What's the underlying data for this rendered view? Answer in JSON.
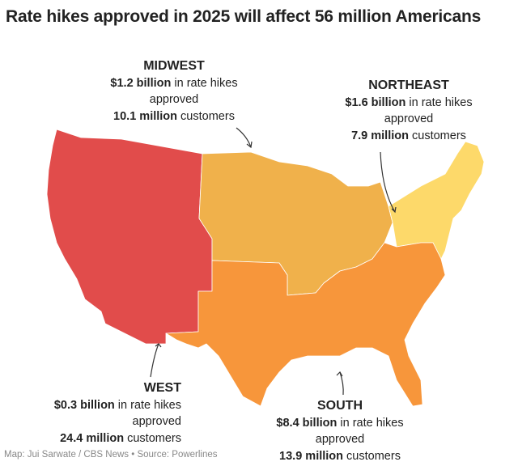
{
  "title": "Rate hikes approved in 2025 will affect 56 million Americans",
  "source": "Map: Jui Sarwate / CBS News • Source: Powerlines",
  "regions": [
    {
      "id": "midwest",
      "name": "MIDWEST",
      "amount": "$1.2 billion",
      "amount_suffix": " in rate hikes",
      "approved": "approved",
      "customers": "10.1 million",
      "customers_suffix": " customers",
      "color": "#f0b14b"
    },
    {
      "id": "northeast",
      "name": "NORTHEAST",
      "amount": "$1.6 billion",
      "amount_suffix": " in rate hikes",
      "approved": "approved",
      "customers": "7.9 million",
      "customers_suffix": " customers",
      "color": "#fdd96a"
    },
    {
      "id": "west",
      "name": "WEST",
      "amount": "$0.3 billion",
      "amount_suffix": " in rate hikes",
      "approved": "approved",
      "customers": "24.4 million",
      "customers_suffix": " customers",
      "color": "#e14c4b"
    },
    {
      "id": "south",
      "name": "SOUTH",
      "amount": "$8.4 billion",
      "amount_suffix": " in rate hikes",
      "approved": "approved",
      "customers": "13.9 million",
      "customers_suffix": " customers",
      "color": "#f7963b"
    }
  ]
}
